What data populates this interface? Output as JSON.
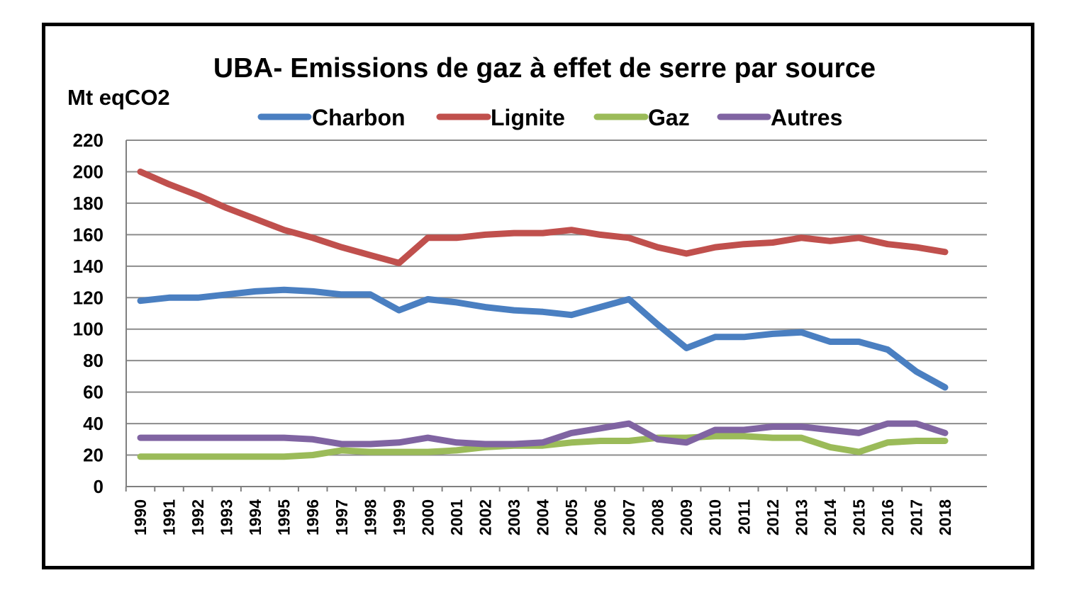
{
  "chart_data": {
    "type": "line",
    "title": "UBA- Emissions de gaz à effet de serre par source",
    "ylabel": "Mt eqCO2",
    "xlabel": "",
    "ylim": [
      0,
      220
    ],
    "y_ticks": [
      0,
      20,
      40,
      60,
      80,
      100,
      120,
      140,
      160,
      180,
      200,
      220
    ],
    "grid": true,
    "legend_position": "top",
    "x": [
      "1990",
      "1991",
      "1992",
      "1993",
      "1994",
      "1995",
      "1996",
      "1997",
      "1998",
      "1999",
      "2000",
      "2001",
      "2002",
      "2003",
      "2004",
      "2005",
      "2006",
      "2007",
      "2008",
      "2009",
      "2010",
      "2011",
      "2012",
      "2013",
      "2014",
      "2015",
      "2016",
      "2017",
      "2018"
    ],
    "series": [
      {
        "name": "Charbon",
        "color": "#4a7fc1",
        "values": [
          118,
          120,
          120,
          122,
          124,
          125,
          124,
          122,
          122,
          112,
          119,
          117,
          114,
          112,
          111,
          109,
          114,
          119,
          103,
          88,
          95,
          95,
          97,
          98,
          92,
          92,
          87,
          73,
          63
        ]
      },
      {
        "name": "Lignite",
        "color": "#c0504d",
        "values": [
          200,
          192,
          185,
          177,
          170,
          163,
          158,
          152,
          147,
          142,
          158,
          158,
          160,
          161,
          161,
          163,
          160,
          158,
          152,
          148,
          152,
          154,
          155,
          158,
          156,
          158,
          154,
          152,
          149
        ]
      },
      {
        "name": "Gaz",
        "color": "#9bbb59",
        "values": [
          19,
          19,
          19,
          19,
          19,
          19,
          20,
          23,
          22,
          22,
          22,
          23,
          25,
          26,
          26,
          28,
          29,
          29,
          31,
          31,
          32,
          32,
          31,
          31,
          25,
          22,
          28,
          29,
          29
        ]
      },
      {
        "name": "Autres",
        "color": "#8064a2",
        "values": [
          31,
          31,
          31,
          31,
          31,
          31,
          30,
          27,
          27,
          28,
          31,
          28,
          27,
          27,
          28,
          34,
          37,
          40,
          30,
          28,
          36,
          36,
          38,
          38,
          36,
          34,
          40,
          40,
          34
        ]
      }
    ]
  }
}
